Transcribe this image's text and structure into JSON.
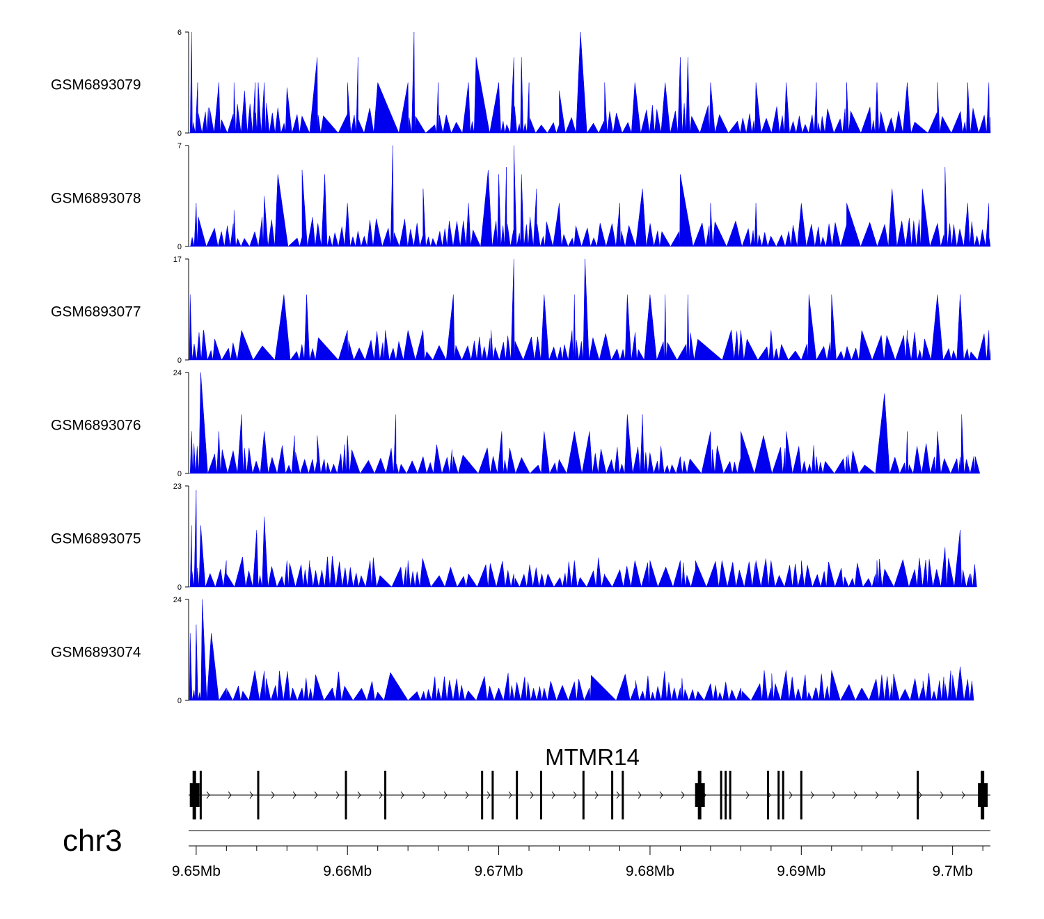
{
  "chart_data": {
    "type": "area",
    "title": "",
    "chromosome": "chr3",
    "xlim_mb": [
      9.6495,
      9.7025
    ],
    "x_ticks": [
      {
        "value": 9.65,
        "label": "9.65Mb"
      },
      {
        "value": 9.66,
        "label": "9.66Mb"
      },
      {
        "value": 9.67,
        "label": "9.67Mb"
      },
      {
        "value": 9.68,
        "label": "9.68Mb"
      },
      {
        "value": 9.69,
        "label": "9.69Mb"
      },
      {
        "value": 9.7,
        "label": "9.7Mb"
      }
    ],
    "fill_color": "#0000ee",
    "series": [
      {
        "name": "GSM6893079",
        "ymax": 6,
        "ymin_label": "0",
        "ymax_label": "6",
        "end": 9.7025,
        "peaks": [
          [
            9.6497,
            6
          ],
          [
            9.6501,
            3
          ],
          [
            9.6508,
            1.5
          ],
          [
            9.6515,
            3
          ],
          [
            9.6525,
            3
          ],
          [
            9.6532,
            2.5
          ],
          [
            9.6539,
            3
          ],
          [
            9.6541,
            3
          ],
          [
            9.6545,
            3
          ],
          [
            9.656,
            2.7
          ],
          [
            9.658,
            4.5
          ],
          [
            9.66,
            3
          ],
          [
            9.6607,
            4.5
          ],
          [
            9.662,
            3
          ],
          [
            9.664,
            3
          ],
          [
            9.6644,
            6
          ],
          [
            9.666,
            3
          ],
          [
            9.668,
            3
          ],
          [
            9.6685,
            4.5
          ],
          [
            9.67,
            3
          ],
          [
            9.671,
            4.5
          ],
          [
            9.6715,
            4.5
          ],
          [
            9.672,
            3
          ],
          [
            9.674,
            2.5
          ],
          [
            9.6754,
            6
          ],
          [
            9.677,
            3
          ],
          [
            9.679,
            3
          ],
          [
            9.681,
            3
          ],
          [
            9.682,
            4.5
          ],
          [
            9.6825,
            4.5
          ],
          [
            9.684,
            3
          ],
          [
            9.687,
            3
          ],
          [
            9.689,
            3
          ],
          [
            9.691,
            3
          ],
          [
            9.693,
            3
          ],
          [
            9.695,
            3
          ],
          [
            9.697,
            3
          ],
          [
            9.699,
            3
          ],
          [
            9.701,
            3
          ],
          [
            9.7024,
            3
          ]
        ]
      },
      {
        "name": "GSM6893078",
        "ymax": 7,
        "ymin_label": "0",
        "ymax_label": "7",
        "end": 9.7025,
        "peaks": [
          [
            9.65,
            3
          ],
          [
            9.6525,
            2.5
          ],
          [
            9.6545,
            3.5
          ],
          [
            9.6554,
            5
          ],
          [
            9.657,
            5.3
          ],
          [
            9.6585,
            5
          ],
          [
            9.66,
            3
          ],
          [
            9.663,
            7
          ],
          [
            9.665,
            4
          ],
          [
            9.668,
            3
          ],
          [
            9.6693,
            5.3
          ],
          [
            9.67,
            5
          ],
          [
            9.6705,
            5.5
          ],
          [
            9.671,
            7
          ],
          [
            9.6715,
            5
          ],
          [
            9.6725,
            4
          ],
          [
            9.674,
            3
          ],
          [
            9.678,
            3
          ],
          [
            9.6795,
            4
          ],
          [
            9.682,
            5
          ],
          [
            9.684,
            3
          ],
          [
            9.687,
            3
          ],
          [
            9.69,
            3
          ],
          [
            9.693,
            3
          ],
          [
            9.696,
            4
          ],
          [
            9.698,
            4
          ],
          [
            9.6995,
            5.5
          ],
          [
            9.701,
            3
          ],
          [
            9.7024,
            3
          ]
        ]
      },
      {
        "name": "GSM6893077",
        "ymax": 17,
        "ymin_label": "0",
        "ymax_label": "17",
        "end": 9.7025,
        "peaks": [
          [
            9.6496,
            11
          ],
          [
            9.6505,
            5
          ],
          [
            9.653,
            5
          ],
          [
            9.6558,
            11
          ],
          [
            9.6573,
            11
          ],
          [
            9.66,
            5
          ],
          [
            9.6625,
            5
          ],
          [
            9.664,
            5
          ],
          [
            9.667,
            11
          ],
          [
            9.6695,
            5
          ],
          [
            9.671,
            17
          ],
          [
            9.673,
            11
          ],
          [
            9.675,
            11
          ],
          [
            9.6757,
            17
          ],
          [
            9.6785,
            11
          ],
          [
            9.68,
            11
          ],
          [
            9.681,
            11
          ],
          [
            9.6825,
            11
          ],
          [
            9.686,
            5
          ],
          [
            9.688,
            5
          ],
          [
            9.6905,
            11
          ],
          [
            9.692,
            11
          ],
          [
            9.694,
            5
          ],
          [
            9.697,
            5
          ],
          [
            9.699,
            11
          ],
          [
            9.7005,
            11
          ],
          [
            9.7024,
            5
          ]
        ]
      },
      {
        "name": "GSM6893076",
        "ymax": 24,
        "ymin_label": "0",
        "ymax_label": "24",
        "end": 9.7018,
        "peaks": [
          [
            9.6497,
            10
          ],
          [
            9.6503,
            24
          ],
          [
            9.6515,
            10
          ],
          [
            9.653,
            14
          ],
          [
            9.6545,
            10
          ],
          [
            9.6565,
            9
          ],
          [
            9.658,
            9
          ],
          [
            9.66,
            9
          ],
          [
            9.6632,
            14
          ],
          [
            9.665,
            4
          ],
          [
            9.667,
            4
          ],
          [
            9.6702,
            10
          ],
          [
            9.673,
            10
          ],
          [
            9.675,
            10
          ],
          [
            9.676,
            10
          ],
          [
            9.6785,
            14
          ],
          [
            9.6795,
            14
          ],
          [
            9.682,
            4
          ],
          [
            9.684,
            10
          ],
          [
            9.686,
            10
          ],
          [
            9.6875,
            9
          ],
          [
            9.689,
            10
          ],
          [
            9.691,
            4
          ],
          [
            9.693,
            4
          ],
          [
            9.6955,
            19
          ],
          [
            9.697,
            10
          ],
          [
            9.699,
            10
          ],
          [
            9.7006,
            14
          ],
          [
            9.7015,
            4
          ]
        ]
      },
      {
        "name": "GSM6893075",
        "ymax": 23,
        "ymin_label": "0",
        "ymax_label": "23",
        "end": 9.7016,
        "peaks": [
          [
            9.6497,
            14
          ],
          [
            9.65,
            22
          ],
          [
            9.6503,
            14
          ],
          [
            9.652,
            3
          ],
          [
            9.654,
            13
          ],
          [
            9.6545,
            16
          ],
          [
            9.656,
            6
          ],
          [
            9.6575,
            6
          ],
          [
            9.659,
            7
          ],
          [
            9.6615,
            6
          ],
          [
            9.664,
            6
          ],
          [
            9.668,
            3
          ],
          [
            9.671,
            3
          ],
          [
            9.675,
            6
          ],
          [
            9.677,
            3
          ],
          [
            9.679,
            6
          ],
          [
            9.68,
            6
          ],
          [
            9.682,
            6
          ],
          [
            9.683,
            6
          ],
          [
            9.687,
            6
          ],
          [
            9.688,
            6
          ],
          [
            9.69,
            6
          ],
          [
            9.695,
            6
          ],
          [
            9.6975,
            4
          ],
          [
            9.6995,
            9
          ],
          [
            9.7005,
            13
          ],
          [
            9.7012,
            3
          ]
        ]
      },
      {
        "name": "GSM6893074",
        "ymax": 24,
        "ymin_label": "0",
        "ymax_label": "24",
        "end": 9.7014,
        "peaks": [
          [
            9.6496,
            16
          ],
          [
            9.65,
            18
          ],
          [
            9.6504,
            24
          ],
          [
            9.651,
            16
          ],
          [
            9.652,
            3
          ],
          [
            9.6545,
            7
          ],
          [
            9.6555,
            7
          ],
          [
            9.657,
            3
          ],
          [
            9.659,
            3
          ],
          [
            9.662,
            2
          ],
          [
            9.666,
            3
          ],
          [
            9.67,
            3
          ],
          [
            9.673,
            3
          ],
          [
            9.676,
            3
          ],
          [
            9.679,
            3
          ],
          [
            9.682,
            3
          ],
          [
            9.684,
            4
          ],
          [
            9.686,
            3
          ],
          [
            9.688,
            3
          ],
          [
            9.691,
            3
          ],
          [
            9.694,
            3
          ],
          [
            9.696,
            4
          ],
          [
            9.698,
            3
          ],
          [
            9.6995,
            4
          ],
          [
            9.7,
            6
          ],
          [
            9.7005,
            8
          ],
          [
            9.701,
            5
          ]
        ]
      }
    ],
    "gene": {
      "name": "MTMR14",
      "strand": "+",
      "start": 9.6495,
      "end": 9.7025,
      "exons": [
        9.6499,
        9.6503,
        9.6541,
        9.6599,
        9.6625,
        9.6689,
        9.6696,
        9.6712,
        9.6728,
        9.6756,
        9.6775,
        9.6782,
        9.6833,
        9.6847,
        9.685,
        9.6853,
        9.6878,
        9.6885,
        9.6888,
        9.69,
        9.6977,
        9.702
      ]
    }
  }
}
